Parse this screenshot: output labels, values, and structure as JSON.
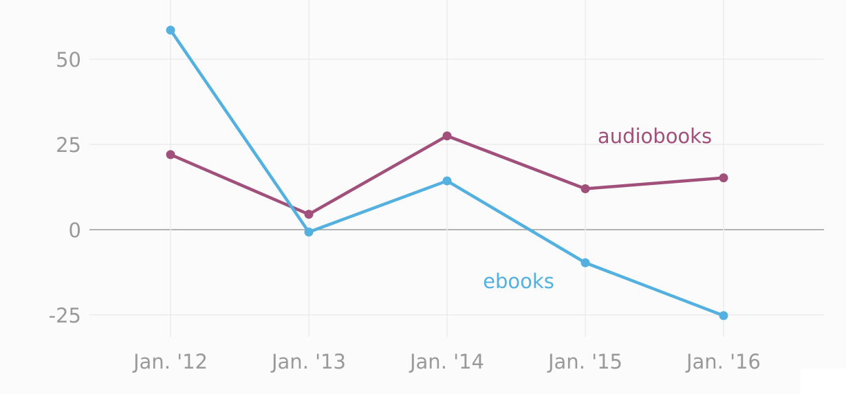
{
  "chart_data": {
    "type": "line",
    "x": [
      "Jan. '12",
      "Jan. '13",
      "Jan. '14",
      "Jan. '15",
      "Jan. '16"
    ],
    "series": [
      {
        "name": "audiobooks",
        "color": "#a0507a",
        "values": [
          22,
          4.5,
          27.5,
          12,
          15.2
        ]
      },
      {
        "name": "ebooks",
        "color": "#54b0df",
        "values": [
          58.5,
          -0.7,
          14.3,
          -9.7,
          -25.2
        ]
      }
    ],
    "y_ticks": [
      50,
      25,
      0,
      -25
    ],
    "y_tick_labels": [
      "50",
      "25",
      "0",
      "-25"
    ],
    "ylim": [
      -25,
      60
    ],
    "grid": true,
    "legend": "inline labels"
  }
}
